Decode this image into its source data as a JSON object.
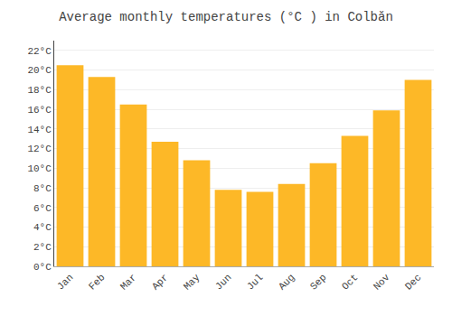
{
  "chart_data": {
    "type": "bar",
    "title": "Average monthly temperatures (°C ) in Colbăn",
    "categories": [
      "Jan",
      "Feb",
      "Mar",
      "Apr",
      "May",
      "Jun",
      "Jul",
      "Aug",
      "Sep",
      "Oct",
      "Nov",
      "Dec"
    ],
    "values": [
      20.5,
      19.3,
      16.5,
      12.7,
      10.8,
      7.8,
      7.6,
      8.4,
      10.5,
      13.3,
      15.9,
      19.0
    ],
    "color": "#FDB827",
    "ylim": [
      0,
      23
    ],
    "yticks": [
      {
        "value": 0,
        "label": "0°C"
      },
      {
        "value": 2,
        "label": "2°C"
      },
      {
        "value": 4,
        "label": "4°C"
      },
      {
        "value": 6,
        "label": "6°C"
      },
      {
        "value": 8,
        "label": "8°C"
      },
      {
        "value": 10,
        "label": "10°C"
      },
      {
        "value": 12,
        "label": "12°C"
      },
      {
        "value": 14,
        "label": "14°C"
      },
      {
        "value": 16,
        "label": "16°C"
      },
      {
        "value": 18,
        "label": "18°C"
      },
      {
        "value": 20,
        "label": "20°C"
      },
      {
        "value": 22,
        "label": "22°C"
      }
    ],
    "grid": true
  }
}
